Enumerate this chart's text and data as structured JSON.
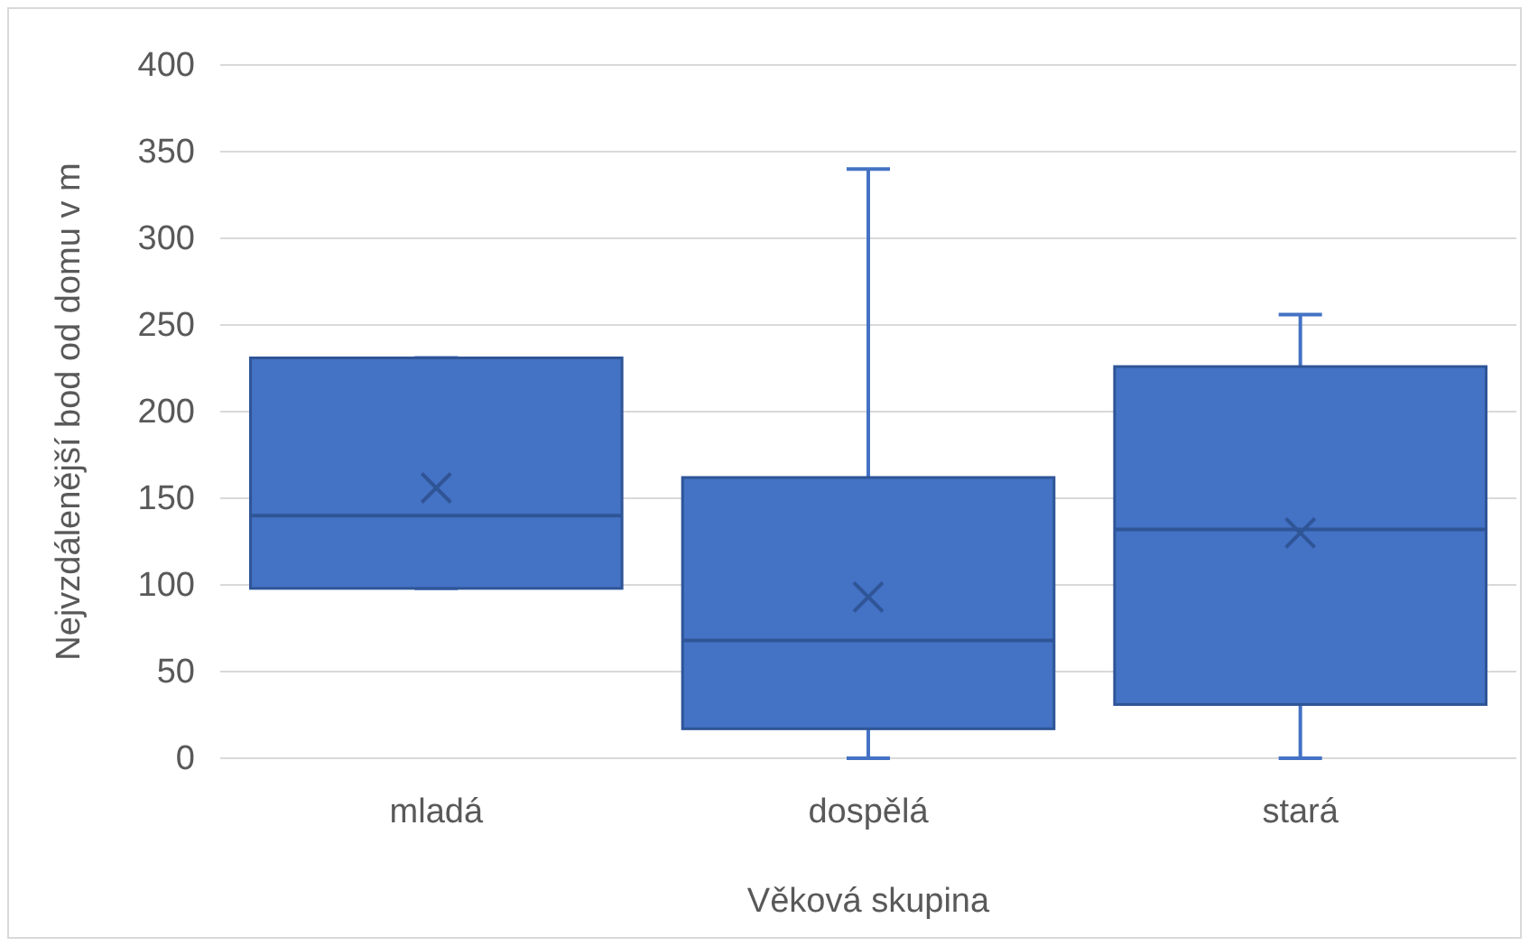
{
  "chart_data": {
    "type": "box",
    "xlabel": "Věková skupina",
    "ylabel": "Nejvzdálenější bod od domu v m",
    "categories": [
      "mladá",
      "dospělá",
      "stará"
    ],
    "boxes": [
      {
        "low": 98,
        "q1": 98,
        "median": 140,
        "q3": 231,
        "high": 231,
        "mean": 156
      },
      {
        "low": 0,
        "q1": 17,
        "median": 68,
        "q3": 162,
        "high": 340,
        "mean": 93
      },
      {
        "low": 0,
        "q1": 31,
        "median": 132,
        "q3": 226,
        "high": 256,
        "mean": 130
      }
    ],
    "color": "#4472c4",
    "ylim": [
      0,
      400
    ],
    "yticks": [
      0,
      50,
      100,
      150,
      200,
      250,
      300,
      350,
      400
    ],
    "grid": "y",
    "marker": "cross"
  }
}
